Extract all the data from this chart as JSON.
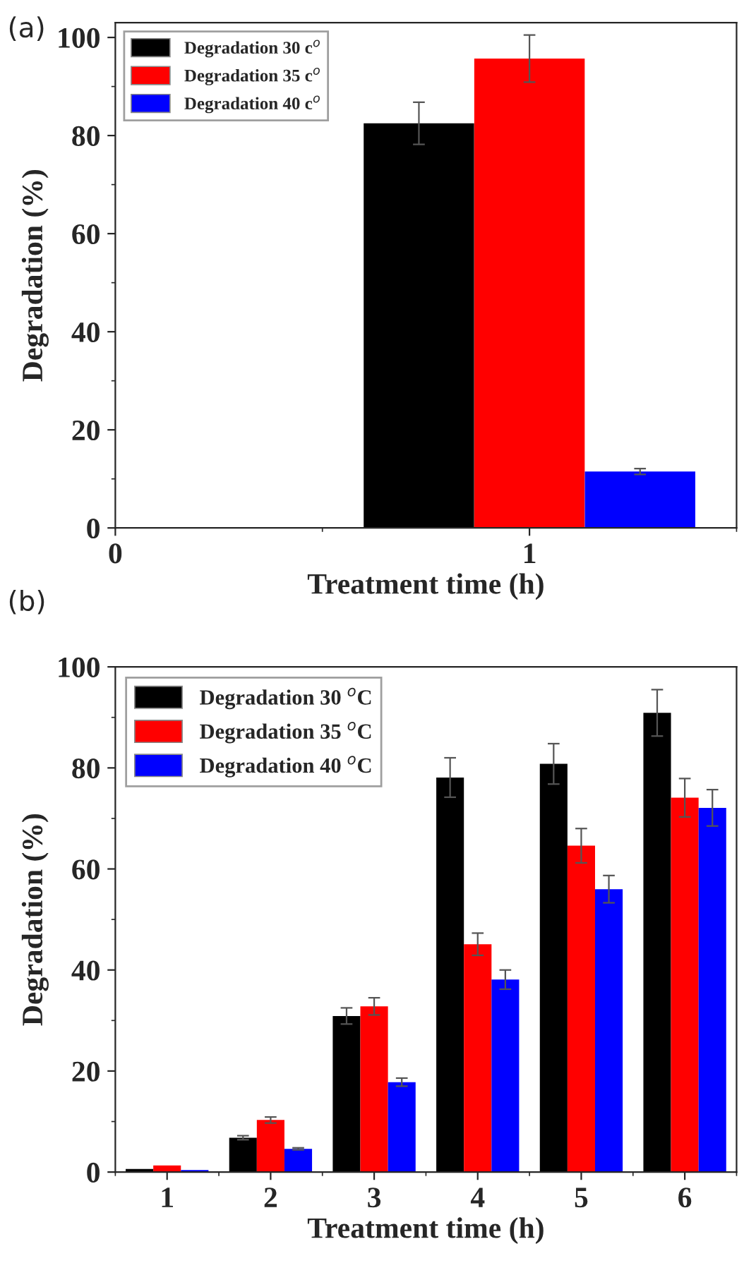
{
  "chart_data": [
    {
      "type": "bar",
      "title": "(a)",
      "xlabel": "Treatment time (h)",
      "ylabel": "Degradation (%)",
      "xlim": [
        0,
        1.5
      ],
      "xticks": [
        0,
        1
      ],
      "ylim": [
        0,
        103
      ],
      "yticks": [
        0,
        20,
        40,
        60,
        80,
        100
      ],
      "legend": "top left",
      "series": [
        {
          "name": "Degradation 30 c$^{o}$",
          "color": "#000000",
          "x": [
            0.733
          ],
          "values": [
            82.5
          ],
          "errors": [
            4.3
          ]
        },
        {
          "name": "Degradation 35 c$^{o}$",
          "color": "#ff0000",
          "x": [
            1.0
          ],
          "values": [
            95.7
          ],
          "errors": [
            4.8
          ]
        },
        {
          "name": "Degradation 40 c$^{o}$",
          "color": "#0000ff",
          "x": [
            1.267
          ],
          "values": [
            11.5
          ],
          "errors": [
            0.6
          ]
        }
      ]
    },
    {
      "type": "bar",
      "title": "(b)",
      "xlabel": "Treatment time (h)",
      "ylabel": "Degradation (%)",
      "categories": [
        "1",
        "2",
        "3",
        "4",
        "5",
        "6"
      ],
      "ylim": [
        0,
        100
      ],
      "yticks": [
        0,
        20,
        40,
        60,
        80,
        100
      ],
      "legend": "top left",
      "series": [
        {
          "name": "Degradation 30 $^{o}$C",
          "color": "#000000",
          "values": [
            0.6,
            6.8,
            30.9,
            78.1,
            80.8,
            90.9
          ],
          "errors": [
            null,
            0.4,
            1.6,
            3.9,
            4.0,
            4.6
          ]
        },
        {
          "name": "Degradation 35 $^{o}$C",
          "color": "#ff0000",
          "values": [
            1.3,
            10.3,
            32.8,
            45.1,
            64.6,
            74.1
          ],
          "errors": [
            null,
            0.6,
            1.7,
            2.2,
            3.4,
            3.8
          ]
        },
        {
          "name": "Degradation 40 $^{o}$C",
          "color": "#0000ff",
          "values": [
            0.4,
            4.6,
            17.8,
            38.1,
            56.0,
            72.1
          ],
          "errors": [
            null,
            0.2,
            0.8,
            1.9,
            2.7,
            3.6
          ]
        }
      ]
    }
  ]
}
